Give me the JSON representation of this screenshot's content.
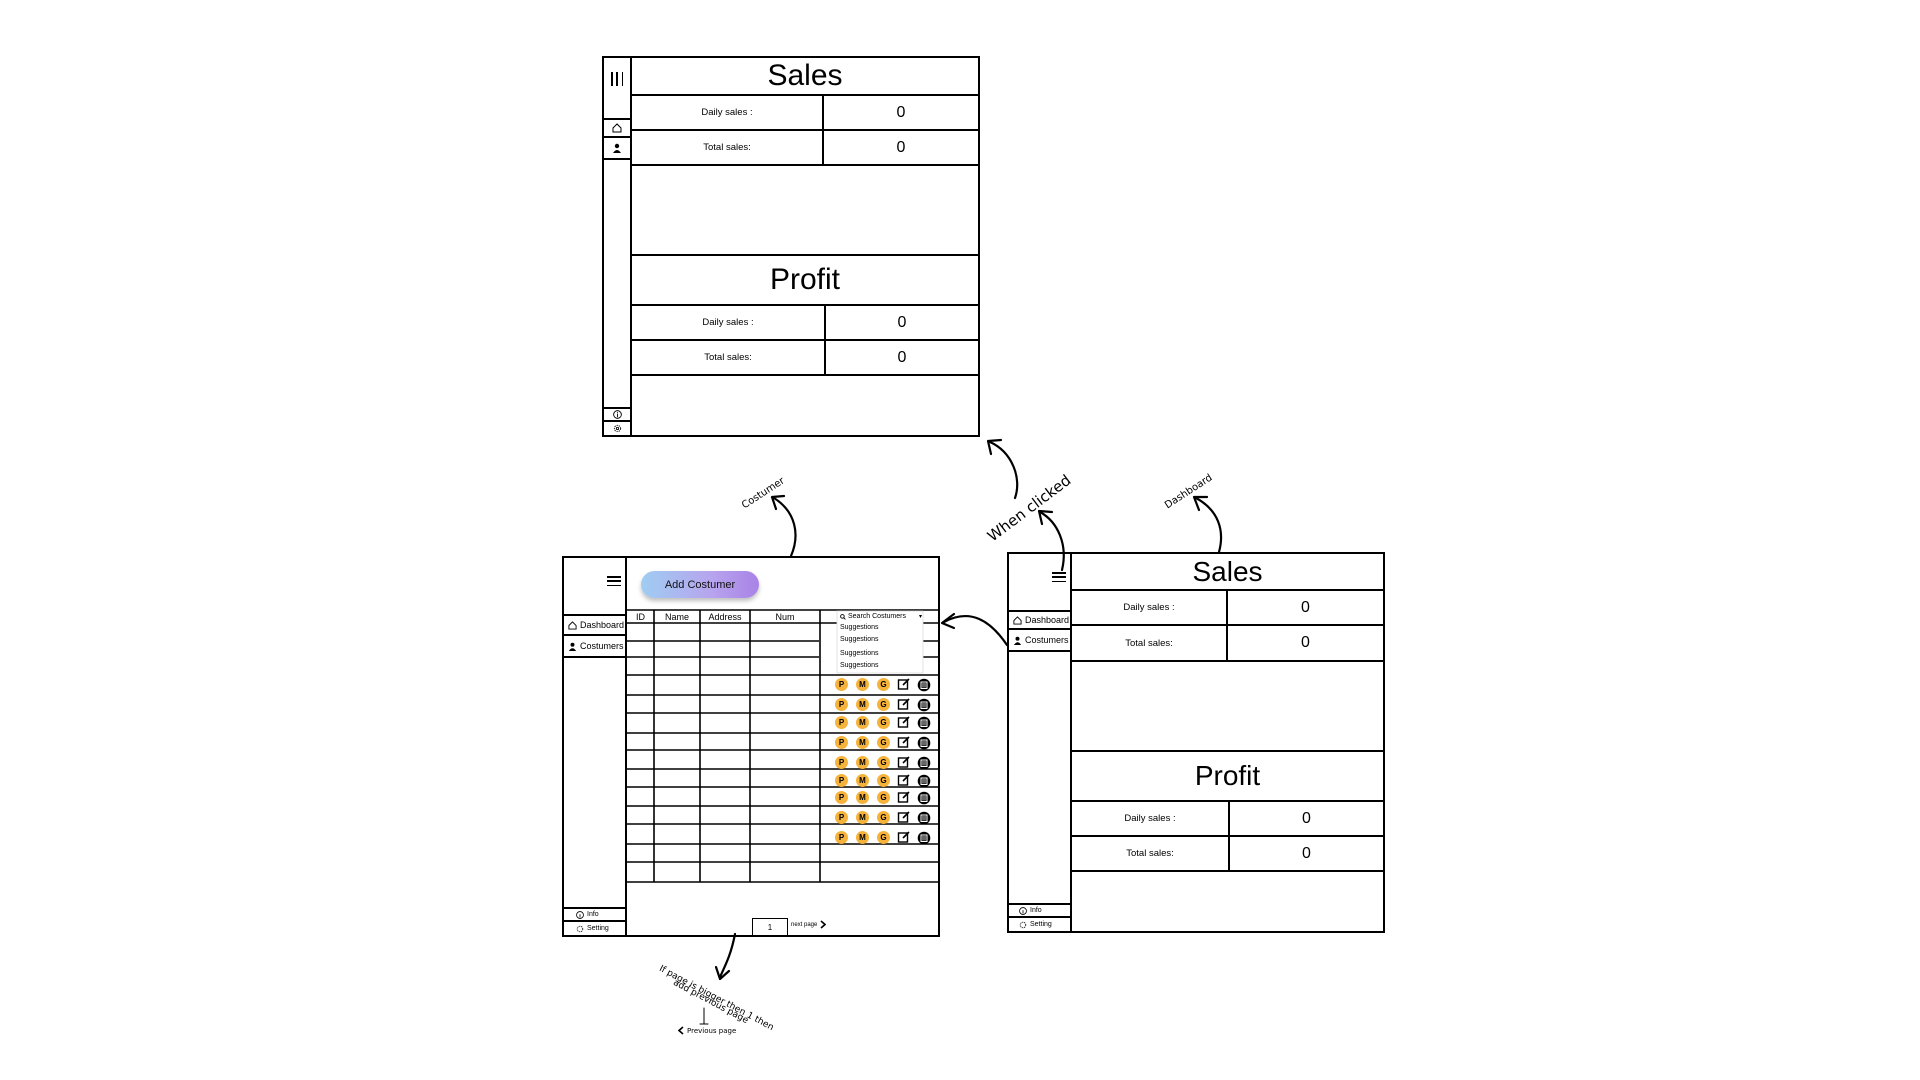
{
  "annotations": {
    "costumer": "Costumer",
    "dashboard": "Dashboard",
    "when_clicked": "When clicked",
    "page_note_line1": "If page is bigger then 1 then",
    "page_note_line2": "add previous page",
    "previous_page": "Previous page"
  },
  "top_frame": {
    "sales_title": "Sales",
    "sales_daily_label": "Daily sales :",
    "sales_daily_value": "0",
    "sales_total_label": "Total sales:",
    "sales_total_value": "0",
    "profit_title": "Profit",
    "profit_daily_label": "Daily sales :",
    "profit_daily_value": "0",
    "profit_total_label": "Total sales:",
    "profit_total_value": "0"
  },
  "dashboard_frame": {
    "nav_dashboard": "Dashboard",
    "nav_costumers": "Costumers",
    "nav_info": "Info",
    "nav_setting": "Setting",
    "sales_title": "Sales",
    "sales_daily_label": "Daily sales :",
    "sales_daily_value": "0",
    "sales_total_label": "Total sales:",
    "sales_total_value": "0",
    "profit_title": "Profit",
    "profit_daily_label": "Daily sales :",
    "profit_daily_value": "0",
    "profit_total_label": "Total sales:",
    "profit_total_value": "0"
  },
  "customer_frame": {
    "nav_dashboard": "Dashboard",
    "nav_costumers": "Costumers",
    "nav_info": "Info",
    "nav_setting": "Setting",
    "add_button": "Add Costumer",
    "columns": [
      "ID",
      "Name",
      "Address",
      "Num"
    ],
    "search_placeholder": "Search Costumers",
    "suggestions": [
      "Suggestions",
      "Suggestions",
      "Suggestions",
      "Suggestions"
    ],
    "badges": [
      "P",
      "M",
      "G"
    ],
    "action_rows": 9,
    "page_number": "1",
    "next_page": "next page"
  },
  "colors": {
    "badge": "#f5b33c",
    "button_gradient_start": "#9fcdf2",
    "button_gradient_end": "#a982e6"
  }
}
